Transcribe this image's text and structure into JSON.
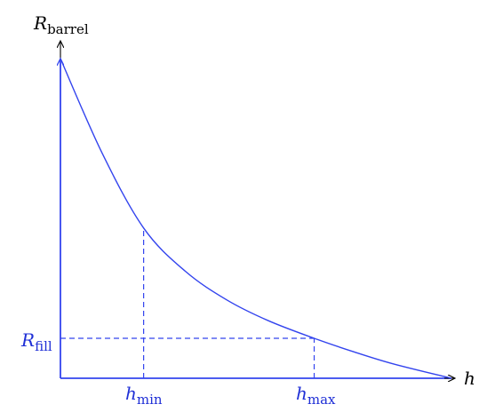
{
  "chart_data": {
    "type": "line",
    "ylabel": {
      "main": "R",
      "sub": "barrel"
    },
    "xlabel": {
      "main": "h",
      "sub": ""
    },
    "ticks_x": [
      {
        "main": "h",
        "sub": "min",
        "x": 1.0
      },
      {
        "main": "h",
        "sub": "max",
        "x": 3.05
      }
    ],
    "ticks_y": [
      {
        "main": "R",
        "sub": "fill",
        "y": 0.5
      }
    ],
    "series": [
      {
        "curve": "exponential decay",
        "x": [
          0,
          0.5,
          1.0,
          1.5,
          2.0,
          2.5,
          3.05,
          3.5,
          4.0,
          4.7
        ],
        "y": [
          4.0,
          2.82,
          1.88,
          1.34,
          0.98,
          0.72,
          0.5,
          0.34,
          0.18,
          0.0
        ]
      }
    ],
    "xlim": [
      0,
      4.7
    ],
    "ylim": [
      0,
      4.0
    ],
    "grid": false,
    "colors": {
      "curve": "#3344ee",
      "axis_y": "#3344ee",
      "axis_x": "#3344ee",
      "guides": "#3344ee",
      "tick_labels": "#1f2fd6",
      "axis_label": "#000000"
    }
  }
}
